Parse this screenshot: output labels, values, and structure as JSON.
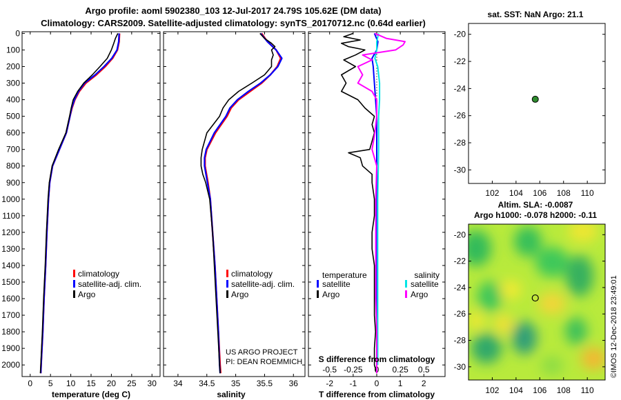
{
  "title": {
    "line1": "Argo profile: aoml 5902380_103 12-Jul-2017 24.79S 105.62E (DM data)",
    "line2": "Climatology: CARS2009. Satellite-adjusted climatology: synTS_20170712.nc (0.64d earlier)"
  },
  "credit": {
    "line1": "US ARGO PROJECT",
    "line2": "PI: DEAN ROEMMICH"
  },
  "imos_stamp": "©IMOS 12-Dec-2018 23:49:01",
  "colors": {
    "climatology": "#ff0000",
    "satellite": "#0000ff",
    "argo": "#000000",
    "sat_s": "#00e5e5",
    "argo_s": "#ff00ff"
  },
  "depth_ticks": [
    "0",
    "100",
    "200",
    "300",
    "400",
    "500",
    "600",
    "700",
    "800",
    "900",
    "1000",
    "1100",
    "1200",
    "1300",
    "1400",
    "1500",
    "1600",
    "1700",
    "1800",
    "1900",
    "2000"
  ],
  "chart_data": [
    {
      "type": "line",
      "name": "temperature",
      "xlabel": "temperature (deg C)",
      "ylabel": "depth",
      "xlim": [
        -2,
        32
      ],
      "ylim": [
        2070,
        -10
      ],
      "xticks": [
        "0",
        "5",
        "10",
        "15",
        "20",
        "25",
        "30"
      ],
      "legend": [
        "climatology",
        "satellite-adj. clim.",
        "Argo"
      ],
      "series": [
        {
          "name": "climatology",
          "depth": [
            0,
            50,
            100,
            150,
            200,
            250,
            300,
            350,
            400,
            450,
            500,
            600,
            700,
            800,
            900,
            1000,
            1200,
            1400,
            1600,
            1800,
            2000,
            2050
          ],
          "values": [
            22.0,
            21.9,
            21.5,
            20.3,
            18.5,
            16.3,
            13.7,
            12.1,
            11.0,
            10.3,
            9.8,
            8.9,
            7.2,
            5.5,
            4.8,
            4.5,
            4.1,
            3.8,
            3.4,
            3.1,
            2.7,
            2.6
          ]
        },
        {
          "name": "satellite-adj. clim.",
          "depth": [
            0,
            50,
            100,
            150,
            200,
            250,
            300,
            350,
            400,
            450,
            500,
            600,
            700,
            800,
            900,
            1000,
            1200,
            1400,
            1600,
            1800,
            2000,
            2050
          ],
          "values": [
            21.9,
            21.8,
            21.4,
            20.1,
            18.2,
            16.0,
            13.4,
            11.9,
            10.9,
            10.2,
            9.8,
            8.9,
            7.2,
            5.5,
            4.8,
            4.5,
            4.1,
            3.8,
            3.4,
            3.1,
            2.7,
            2.6
          ]
        },
        {
          "name": "Argo",
          "depth": [
            0,
            30,
            60,
            100,
            150,
            200,
            250,
            300,
            350,
            400,
            450,
            500,
            600,
            700,
            800,
            900,
            1000,
            1200,
            1400,
            1600,
            1800,
            2000,
            2050
          ],
          "values": [
            21.6,
            21.0,
            20.6,
            20.0,
            19.0,
            17.2,
            15.3,
            13.2,
            11.7,
            10.6,
            10.1,
            9.7,
            8.8,
            7.0,
            5.4,
            4.7,
            4.4,
            4.0,
            3.7,
            3.3,
            3.0,
            2.6,
            2.5
          ]
        }
      ]
    },
    {
      "type": "line",
      "name": "salinity",
      "xlabel": "salinity",
      "ylabel": "depth",
      "xlim": [
        33.75,
        36.2
      ],
      "ylim": [
        2070,
        -10
      ],
      "xticks": [
        "34",
        "34.5",
        "35",
        "35.5",
        "36"
      ],
      "legend": [
        "climatology",
        "satellite-adj. clim.",
        "Argo"
      ],
      "series": [
        {
          "name": "climatology",
          "depth": [
            0,
            50,
            100,
            150,
            200,
            250,
            300,
            350,
            400,
            450,
            500,
            600,
            700,
            750,
            800,
            900,
            1000,
            1200,
            1400,
            1600,
            1800,
            2000,
            2050
          ],
          "values": [
            35.45,
            35.55,
            35.7,
            35.78,
            35.72,
            35.6,
            35.45,
            35.25,
            35.05,
            34.92,
            34.85,
            34.65,
            34.5,
            34.47,
            34.47,
            34.52,
            34.56,
            34.6,
            34.64,
            34.67,
            34.7,
            34.73,
            34.74
          ]
        },
        {
          "name": "satellite-adj. clim.",
          "depth": [
            0,
            50,
            100,
            150,
            200,
            250,
            300,
            350,
            400,
            450,
            500,
            600,
            700,
            750,
            800,
            900,
            1000,
            1200,
            1400,
            1600,
            1800,
            2000,
            2050
          ],
          "values": [
            35.43,
            35.55,
            35.7,
            35.8,
            35.73,
            35.6,
            35.43,
            35.22,
            35.03,
            34.9,
            34.83,
            34.63,
            34.49,
            34.46,
            34.46,
            34.51,
            34.56,
            34.6,
            34.64,
            34.67,
            34.7,
            34.72,
            34.73
          ]
        },
        {
          "name": "Argo",
          "depth": [
            0,
            30,
            60,
            80,
            100,
            130,
            160,
            200,
            250,
            300,
            350,
            400,
            450,
            500,
            600,
            700,
            750,
            800,
            850,
            900,
            1000,
            1200,
            1400,
            1600,
            1800,
            2000,
            2050
          ],
          "values": [
            35.42,
            35.5,
            35.62,
            35.68,
            35.62,
            35.65,
            35.62,
            35.62,
            35.5,
            35.28,
            35.05,
            34.88,
            34.78,
            34.72,
            34.5,
            34.42,
            34.4,
            34.4,
            34.43,
            34.48,
            34.55,
            34.6,
            34.63,
            34.66,
            34.69,
            34.72,
            34.73
          ]
        }
      ]
    },
    {
      "type": "line",
      "name": "difference",
      "xlabel": "T difference from climatology",
      "x2label": "S difference from climatology",
      "ylabel": "depth",
      "xlim": [
        -2.9,
        2.9
      ],
      "ylim": [
        2070,
        -10
      ],
      "xticks": [
        "-2",
        "-1",
        "0",
        "1",
        "2"
      ],
      "x2ticks": [
        "-0.5",
        "-0.25",
        "0",
        "0.25",
        "0.5"
      ],
      "legend_t_title": "temperature",
      "legend_s_title": "salinity",
      "legend": {
        "t_sat": "satellite",
        "t_argo": "Argo",
        "s_sat": "satellite",
        "s_argo": "Argo"
      },
      "series": [
        {
          "name": "T satellite",
          "depth": [
            0,
            50,
            100,
            150,
            200,
            300,
            400,
            500,
            700,
            1000,
            1500,
            2000
          ],
          "values": [
            -0.1,
            0.05,
            0.0,
            -0.2,
            -0.15,
            -0.1,
            -0.05,
            0.0,
            0.0,
            0.0,
            0.0,
            0.0
          ]
        },
        {
          "name": "T Argo",
          "depth": [
            0,
            20,
            40,
            60,
            80,
            100,
            130,
            160,
            200,
            250,
            300,
            350,
            400,
            450,
            500,
            550,
            600,
            650,
            700,
            720,
            750,
            800,
            850,
            900,
            1000,
            1100,
            1200,
            1300,
            1400,
            1500,
            1600,
            1700,
            1800,
            1900,
            2000,
            2050
          ],
          "values": [
            -1.0,
            -1.4,
            -0.7,
            -1.5,
            -1.2,
            -0.5,
            -0.9,
            -1.4,
            -0.9,
            -1.5,
            -1.3,
            -1.5,
            -0.8,
            -0.5,
            -0.1,
            -0.2,
            -0.1,
            -0.2,
            -0.3,
            -1.2,
            -0.7,
            -0.6,
            -0.2,
            -0.2,
            -0.1,
            -0.1,
            -0.2,
            -0.2,
            -0.1,
            -0.1,
            -0.1,
            -0.1,
            -0.05,
            -0.1,
            -0.1,
            0.0
          ]
        },
        {
          "name": "S satellite",
          "depth": [
            0,
            50,
            100,
            150,
            200,
            300,
            400,
            500,
            700,
            1000,
            1500,
            2000
          ],
          "values": [
            0.02,
            0.0,
            0.0,
            -0.02,
            0.01,
            0.03,
            0.03,
            0.02,
            0.02,
            0.01,
            0.01,
            0.01
          ]
        },
        {
          "name": "S Argo",
          "depth": [
            0,
            30,
            50,
            70,
            100,
            130,
            160,
            200,
            250,
            300,
            350,
            400,
            500,
            600,
            700,
            800,
            1000,
            1200,
            1400,
            1600,
            1800,
            2000,
            2050
          ],
          "values": [
            -0.02,
            0.1,
            0.3,
            0.28,
            0.2,
            -0.15,
            -0.05,
            -0.2,
            -0.15,
            -0.2,
            -0.05,
            0.0,
            0.0,
            -0.02,
            -0.05,
            0.0,
            -0.01,
            -0.01,
            -0.01,
            -0.01,
            0.0,
            0.0,
            0.0
          ]
        }
      ]
    },
    {
      "type": "scatter",
      "name": "sst_map",
      "title": "sat. SST: NaN Argo: 21.1",
      "xlim": [
        100,
        111.5
      ],
      "ylim": [
        -31,
        -19.2
      ],
      "xticks": [
        "102",
        "104",
        "106",
        "108",
        "110"
      ],
      "yticks": [
        "-20",
        "-22",
        "-24",
        "-26",
        "-28",
        "-30"
      ],
      "points": [
        {
          "x": 105.62,
          "y": -24.79
        }
      ]
    },
    {
      "type": "heatmap",
      "name": "sla_map",
      "title1": "Altim. SLA: -0.0087",
      "title2": "Argo h1000: -0.078 h2000: -0.11",
      "xlim": [
        100,
        111.5
      ],
      "ylim": [
        -31,
        -19.2
      ],
      "xticks": [
        "102",
        "104",
        "106",
        "108",
        "110"
      ],
      "yticks": [
        "-20",
        "-22",
        "-24",
        "-26",
        "-28",
        "-30"
      ],
      "points": [
        {
          "x": 105.62,
          "y": -24.79
        }
      ]
    }
  ]
}
